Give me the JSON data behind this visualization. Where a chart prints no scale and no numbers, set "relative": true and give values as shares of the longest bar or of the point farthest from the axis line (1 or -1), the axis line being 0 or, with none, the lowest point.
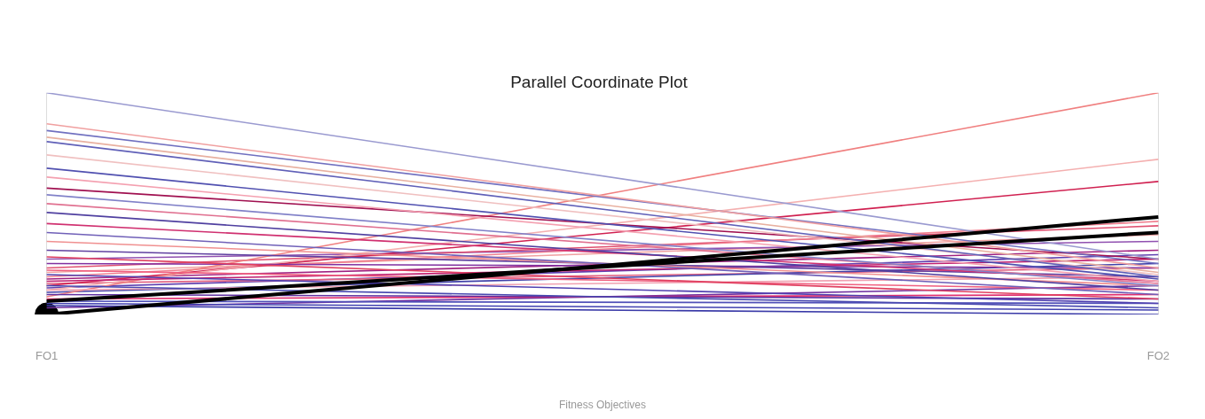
{
  "chart_data": {
    "type": "line",
    "title": "Parallel Coordinate Plot",
    "xlabel": "Fitness Objectives",
    "categories": [
      "FO1",
      "FO2"
    ],
    "relative": true,
    "grid": "x",
    "legend": false,
    "series": [
      {
        "type": "scatter",
        "x": [
          "FO1"
        ],
        "color": "#000000",
        "values": [
          0
        ]
      },
      {
        "color": "#000000",
        "values": [
          0,
          0.44
        ]
      },
      {
        "color": "#000000",
        "values": [
          0.06,
          0.37
        ]
      },
      {
        "color": "#9a9ad0",
        "values": [
          1.0,
          0.25
        ]
      },
      {
        "color": "#f0a0a0",
        "values": [
          0.86,
          0.21
        ]
      },
      {
        "color": "#7070c0",
        "values": [
          0.83,
          0.23
        ]
      },
      {
        "color": "#e8b0a0",
        "values": [
          0.8,
          0.19
        ]
      },
      {
        "color": "#6060b8",
        "values": [
          0.78,
          0.17
        ]
      },
      {
        "color": "#f0c0c0",
        "values": [
          0.72,
          0.18
        ]
      },
      {
        "color": "#5050b0",
        "values": [
          0.66,
          0.16
        ]
      },
      {
        "color": "#f4a0b0",
        "values": [
          0.62,
          0.15
        ]
      },
      {
        "color": "#a01050",
        "values": [
          0.57,
          0.25
        ]
      },
      {
        "color": "#8080c8",
        "values": [
          0.54,
          0.13
        ]
      },
      {
        "color": "#e07090",
        "values": [
          0.5,
          0.14
        ]
      },
      {
        "color": "#5040a0",
        "values": [
          0.46,
          0.11
        ]
      },
      {
        "color": "#d03070",
        "values": [
          0.41,
          0.15
        ]
      },
      {
        "color": "#7060b8",
        "values": [
          0.37,
          0.09
        ]
      },
      {
        "color": "#f09090",
        "values": [
          0.33,
          0.13
        ]
      },
      {
        "color": "#6040a0",
        "values": [
          0.29,
          0.17
        ]
      },
      {
        "color": "#e04060",
        "values": [
          0.26,
          0.07
        ]
      },
      {
        "color": "#8030a0",
        "values": [
          0.23,
          0.21
        ]
      },
      {
        "color": "#f06080",
        "values": [
          0.2,
          0.11
        ]
      },
      {
        "color": "#5040b0",
        "values": [
          0.18,
          0.05
        ]
      },
      {
        "color": "#c02070",
        "values": [
          0.15,
          0.25
        ]
      },
      {
        "color": "#4848b0",
        "values": [
          0.13,
          0.03
        ]
      },
      {
        "color": "#f0a0b0",
        "values": [
          0.11,
          0.17
        ]
      },
      {
        "color": "#6030a0",
        "values": [
          0.09,
          0.07
        ]
      },
      {
        "color": "#e03070",
        "values": [
          0.07,
          0.09
        ]
      },
      {
        "color": "#4040b0",
        "values": [
          0.05,
          0.02
        ]
      },
      {
        "color": "#f08080",
        "values": [
          0.08,
          1.0
        ]
      },
      {
        "color": "#f4b0b0",
        "values": [
          0.11,
          0.7
        ]
      },
      {
        "color": "#d02050",
        "values": [
          0.13,
          0.6
        ]
      },
      {
        "color": "#f08090",
        "values": [
          0.17,
          0.42
        ]
      },
      {
        "color": "#e05070",
        "values": [
          0.21,
          0.4
        ]
      },
      {
        "color": "#9050b0",
        "values": [
          0.25,
          0.33
        ]
      },
      {
        "color": "#a02080",
        "values": [
          0.16,
          0.29
        ]
      },
      {
        "color": "#4040a8",
        "values": [
          0.1,
          0.23
        ]
      },
      {
        "color": "#3a3aa8",
        "values": [
          0.04,
          0
        ]
      },
      {
        "color": "#5050b8",
        "values": [
          0.06,
          0.05
        ]
      },
      {
        "color": "#f0a0a0",
        "values": [
          0.19,
          0.36
        ]
      },
      {
        "color": "#7030a0",
        "values": [
          0.03,
          0.13
        ]
      },
      {
        "color": "#e06080",
        "values": [
          0.14,
          0.21
        ]
      },
      {
        "color": "#6040b0",
        "values": [
          0.12,
          0.27
        ]
      }
    ]
  }
}
